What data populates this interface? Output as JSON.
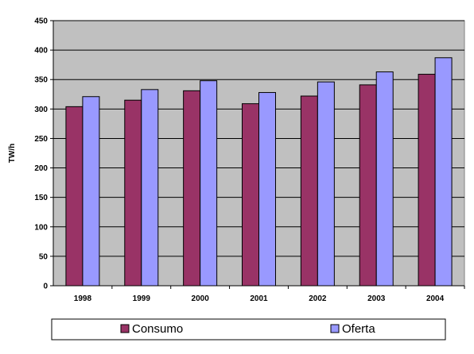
{
  "chart_data": {
    "type": "bar",
    "ylabel": "TW/h",
    "xlabel": "",
    "title": "",
    "ylim": [
      0,
      450
    ],
    "yticks": [
      0,
      50,
      100,
      150,
      200,
      250,
      300,
      350,
      400,
      450
    ],
    "ytick_labels": [
      "0",
      "50",
      "100",
      "150",
      "200",
      "250",
      "300",
      "350",
      "400",
      "450"
    ],
    "categories": [
      "1998",
      "1999",
      "2000",
      "2001",
      "2002",
      "2003",
      "2004"
    ],
    "series": [
      {
        "name": "Consumo",
        "values": [
          304,
          315,
          331,
          309,
          322,
          341,
          359
        ]
      },
      {
        "name": "Oferta",
        "values": [
          321,
          333,
          348,
          328,
          346,
          363,
          387
        ]
      }
    ],
    "grid": true,
    "legend_position": "bottom",
    "colors": {
      "plot_background": "#c0c0c0",
      "gridline": "#000000",
      "series": [
        "#993366",
        "#9999ff"
      ],
      "bar_stroke": "#000000"
    }
  }
}
